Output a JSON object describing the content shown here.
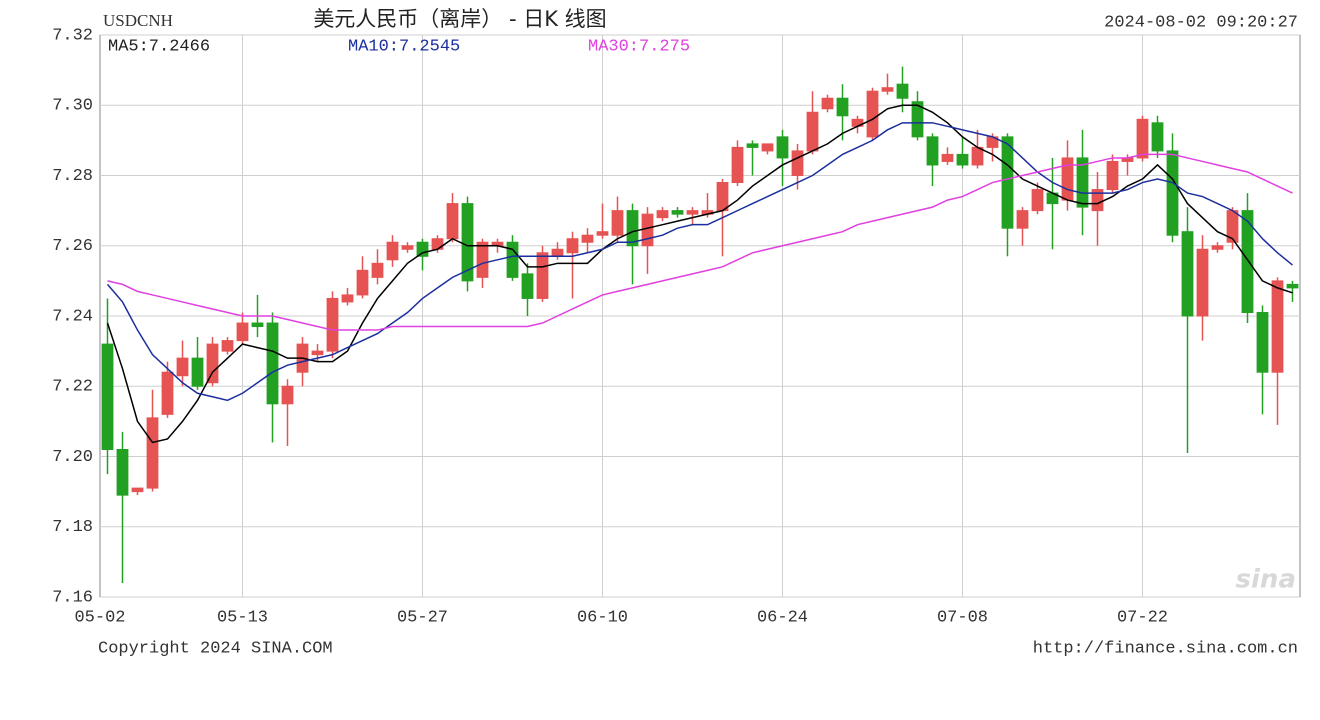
{
  "chart_data": {
    "type": "candlestick",
    "symbol": "USDCNH",
    "title": "美元人民币（离岸） - 日K 线图",
    "timestamp": "2024-08-02 09:20:27",
    "copyright": "Copyright 2024 SINA.COM",
    "url": "http://finance.sina.com.cn",
    "watermark": "sina",
    "up_color": "#e65353",
    "down_color": "#22a022",
    "grid": true,
    "ylim": [
      7.16,
      7.32
    ],
    "yticks": [
      7.16,
      7.18,
      {
        "value": 7.2,
        "label": "7.20"
      },
      7.22,
      7.24,
      7.26,
      7.28,
      {
        "value": 7.3,
        "label": "7.30"
      },
      7.32
    ],
    "categories": [
      "05-02",
      null,
      null,
      null,
      null,
      null,
      null,
      null,
      null,
      "05-13",
      null,
      null,
      null,
      null,
      null,
      null,
      null,
      null,
      null,
      null,
      null,
      "05-27",
      null,
      null,
      null,
      null,
      null,
      null,
      null,
      null,
      null,
      null,
      null,
      "06-10",
      null,
      null,
      null,
      null,
      null,
      null,
      null,
      null,
      null,
      null,
      null,
      "06-24",
      null,
      null,
      null,
      null,
      null,
      null,
      null,
      null,
      null,
      null,
      null,
      "07-08",
      null,
      null,
      null,
      null,
      null,
      null,
      null,
      null,
      null,
      null,
      null,
      "07-22",
      null,
      null,
      null,
      null,
      null,
      null,
      null,
      null,
      null,
      null
    ],
    "open": [
      7.232,
      7.202,
      7.19,
      7.191,
      7.212,
      7.223,
      7.228,
      7.221,
      7.23,
      7.233,
      7.238,
      7.238,
      7.215,
      7.224,
      7.229,
      7.23,
      7.244,
      7.246,
      7.251,
      7.256,
      7.259,
      7.261,
      7.259,
      7.262,
      7.272,
      7.251,
      7.26,
      7.261,
      7.252,
      7.245,
      7.257,
      7.258,
      7.261,
      7.263,
      7.263,
      7.27,
      7.26,
      7.268,
      7.27,
      7.269,
      7.269,
      7.27,
      7.278,
      7.289,
      7.287,
      7.291,
      7.28,
      7.287,
      7.299,
      7.302,
      7.294,
      7.291,
      7.304,
      7.306,
      7.301,
      7.291,
      7.284,
      7.286,
      7.283,
      7.288,
      7.291,
      7.265,
      7.27,
      7.275,
      7.273,
      7.285,
      7.27,
      7.276,
      7.284,
      7.285,
      7.295,
      7.287,
      7.264,
      7.24,
      7.259,
      7.261,
      7.27,
      7.241,
      7.224,
      7.249
    ],
    "high": [
      7.245,
      7.207,
      7.191,
      7.219,
      7.227,
      7.233,
      7.234,
      7.234,
      7.234,
      7.241,
      7.246,
      7.241,
      7.222,
      7.234,
      7.232,
      7.247,
      7.248,
      7.257,
      7.259,
      7.263,
      7.261,
      7.262,
      7.263,
      7.275,
      7.274,
      7.262,
      7.262,
      7.263,
      7.255,
      7.26,
      7.261,
      7.264,
      7.265,
      7.272,
      7.274,
      7.272,
      7.271,
      7.271,
      7.271,
      7.271,
      7.275,
      7.279,
      7.29,
      7.29,
      7.289,
      7.293,
      7.289,
      7.304,
      7.303,
      7.306,
      7.297,
      7.305,
      7.309,
      7.311,
      7.304,
      7.292,
      7.288,
      7.291,
      7.293,
      7.292,
      7.292,
      7.271,
      7.278,
      7.285,
      7.29,
      7.293,
      7.281,
      7.286,
      7.286,
      7.297,
      7.297,
      7.292,
      7.271,
      7.263,
      7.261,
      7.271,
      7.275,
      7.243,
      7.251,
      7.25
    ],
    "low": [
      7.195,
      7.164,
      7.189,
      7.19,
      7.211,
      7.22,
      7.219,
      7.22,
      7.229,
      7.232,
      7.234,
      7.204,
      7.203,
      7.22,
      7.227,
      7.228,
      7.243,
      7.245,
      7.249,
      7.254,
      7.258,
      7.253,
      7.258,
      7.261,
      7.247,
      7.248,
      7.258,
      7.25,
      7.24,
      7.244,
      7.256,
      7.245,
      7.258,
      7.262,
      7.261,
      7.249,
      7.252,
      7.267,
      7.268,
      7.266,
      7.268,
      7.257,
      7.277,
      7.28,
      7.286,
      7.277,
      7.276,
      7.286,
      7.298,
      7.29,
      7.292,
      7.29,
      7.303,
      7.298,
      7.29,
      7.277,
      7.283,
      7.282,
      7.282,
      7.284,
      7.257,
      7.26,
      7.269,
      7.259,
      7.27,
      7.263,
      7.26,
      7.275,
      7.28,
      7.284,
      7.285,
      7.261,
      7.201,
      7.233,
      7.258,
      7.259,
      7.238,
      7.212,
      7.209,
      7.244
    ],
    "close": [
      7.202,
      7.189,
      7.191,
      7.211,
      7.224,
      7.228,
      7.22,
      7.232,
      7.233,
      7.238,
      7.237,
      7.215,
      7.22,
      7.232,
      7.23,
      7.245,
      7.246,
      7.253,
      7.255,
      7.261,
      7.26,
      7.257,
      7.262,
      7.272,
      7.25,
      7.261,
      7.261,
      7.251,
      7.245,
      7.258,
      7.259,
      7.262,
      7.263,
      7.264,
      7.27,
      7.26,
      7.269,
      7.27,
      7.269,
      7.27,
      7.27,
      7.278,
      7.288,
      7.288,
      7.289,
      7.285,
      7.287,
      7.298,
      7.302,
      7.297,
      7.296,
      7.304,
      7.305,
      7.302,
      7.291,
      7.283,
      7.286,
      7.283,
      7.288,
      7.291,
      7.265,
      7.27,
      7.276,
      7.272,
      7.285,
      7.271,
      7.276,
      7.284,
      7.285,
      7.296,
      7.287,
      7.263,
      7.24,
      7.259,
      7.26,
      7.27,
      7.241,
      7.224,
      7.25,
      7.248
    ],
    "series": [
      {
        "name": "MA5:7.2466",
        "color": "#000000",
        "values": [
          7.238,
          7.225,
          7.21,
          7.204,
          7.205,
          7.21,
          7.216,
          7.224,
          7.228,
          7.232,
          7.231,
          7.23,
          7.228,
          7.228,
          7.227,
          7.227,
          7.23,
          7.238,
          7.245,
          7.25,
          7.255,
          7.258,
          7.259,
          7.262,
          7.26,
          7.26,
          7.26,
          7.259,
          7.254,
          7.254,
          7.255,
          7.255,
          7.255,
          7.259,
          7.262,
          7.264,
          7.265,
          7.266,
          7.267,
          7.268,
          7.269,
          7.27,
          7.273,
          7.277,
          7.28,
          7.283,
          7.285,
          7.287,
          7.289,
          7.292,
          7.294,
          7.296,
          7.299,
          7.3,
          7.3,
          7.298,
          7.295,
          7.291,
          7.288,
          7.286,
          7.283,
          7.279,
          7.277,
          7.275,
          7.273,
          7.272,
          7.272,
          7.274,
          7.277,
          7.279,
          7.283,
          7.279,
          7.272,
          7.268,
          7.264,
          7.262,
          7.256,
          7.25,
          7.248,
          7.2466
        ]
      },
      {
        "name": "MA10:7.2545",
        "color": "#1c2f9e",
        "values": [
          7.249,
          7.244,
          7.236,
          7.229,
          7.225,
          7.221,
          7.218,
          7.217,
          7.216,
          7.218,
          7.221,
          7.224,
          7.226,
          7.227,
          7.228,
          7.229,
          7.231,
          7.233,
          7.235,
          7.238,
          7.241,
          7.245,
          7.248,
          7.251,
          7.253,
          7.255,
          7.256,
          7.257,
          7.257,
          7.257,
          7.257,
          7.257,
          7.258,
          7.259,
          7.261,
          7.261,
          7.262,
          7.263,
          7.265,
          7.266,
          7.266,
          7.268,
          7.27,
          7.272,
          7.274,
          7.276,
          7.278,
          7.28,
          7.283,
          7.286,
          7.288,
          7.29,
          7.293,
          7.295,
          7.295,
          7.295,
          7.294,
          7.293,
          7.292,
          7.291,
          7.289,
          7.285,
          7.281,
          7.278,
          7.276,
          7.275,
          7.275,
          7.275,
          7.276,
          7.278,
          7.279,
          7.278,
          7.275,
          7.274,
          7.272,
          7.27,
          7.267,
          7.262,
          7.258,
          7.2545
        ]
      },
      {
        "name": "MA30:7.275",
        "color": "#e040e0",
        "values": [
          7.25,
          7.249,
          7.247,
          7.246,
          7.245,
          7.244,
          7.243,
          7.242,
          7.241,
          7.24,
          7.24,
          7.24,
          7.239,
          7.238,
          7.237,
          7.236,
          7.236,
          7.236,
          7.236,
          7.237,
          7.237,
          7.237,
          7.237,
          7.237,
          7.237,
          7.237,
          7.237,
          7.237,
          7.237,
          7.238,
          7.24,
          7.242,
          7.244,
          7.246,
          7.247,
          7.248,
          7.249,
          7.25,
          7.251,
          7.252,
          7.253,
          7.254,
          7.256,
          7.258,
          7.259,
          7.26,
          7.261,
          7.262,
          7.263,
          7.264,
          7.266,
          7.267,
          7.268,
          7.269,
          7.27,
          7.271,
          7.273,
          7.274,
          7.276,
          7.278,
          7.279,
          7.28,
          7.281,
          7.282,
          7.283,
          7.283,
          7.284,
          7.285,
          7.285,
          7.286,
          7.286,
          7.286,
          7.285,
          7.284,
          7.283,
          7.282,
          7.281,
          7.279,
          7.277,
          7.275
        ]
      }
    ]
  }
}
